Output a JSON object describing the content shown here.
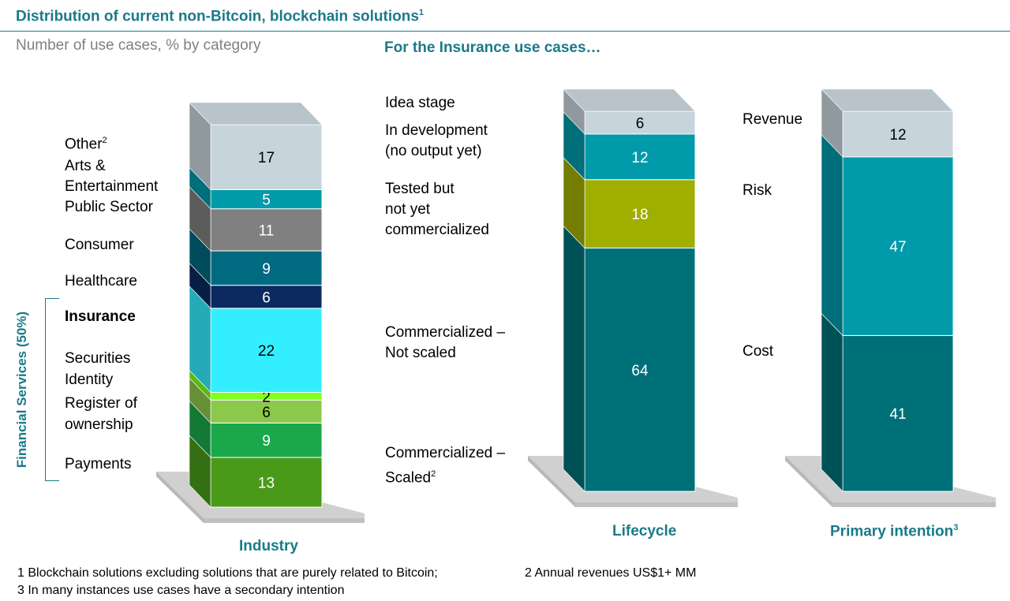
{
  "title": "Distribution of current non-Bitcoin, blockchain solutions",
  "title_sup": "1",
  "subtitle": "Number of use cases, % by category",
  "insurance_heading": "For the Insurance use cases…",
  "bracket_label": "Financial Services (50%)",
  "chart_data": [
    {
      "type": "bar",
      "stacked": true,
      "xlabel": "Industry",
      "categories": [
        "Industry"
      ],
      "series": [
        {
          "name": "Payments",
          "value": 13,
          "color": "#4a9a1a"
        },
        {
          "name": "Register of ownership",
          "value": 9,
          "color": "#1aa84a"
        },
        {
          "name": "Identity",
          "value": 6,
          "color": "#8cc84a"
        },
        {
          "name": "Securities",
          "value": 2,
          "color": "#80ff20"
        },
        {
          "name": "Insurance",
          "value": 22,
          "color": "#33eeff"
        },
        {
          "name": "Healthcare",
          "value": 6,
          "color": "#0a2a60"
        },
        {
          "name": "Consumer",
          "value": 9,
          "color": "#006a80"
        },
        {
          "name": "Public Sector",
          "value": 11,
          "color": "#808080"
        },
        {
          "name": "Arts & Entertainment",
          "value": 5,
          "color": "#009aaa"
        },
        {
          "name": "Other",
          "value": 17,
          "color": "#c8d4dc"
        }
      ]
    },
    {
      "type": "bar",
      "stacked": true,
      "xlabel": "Lifecycle",
      "categories": [
        "Lifecycle"
      ],
      "series": [
        {
          "name": "Commercialized – Scaled",
          "value": 0,
          "color": "#0a2a60"
        },
        {
          "name": "Commercialized – Not scaled",
          "value": 64,
          "color": "#007078"
        },
        {
          "name": "Tested but not yet commercialized",
          "value": 18,
          "color": "#a0ae00"
        },
        {
          "name": "In development (no output yet)",
          "value": 12,
          "color": "#009aaa"
        },
        {
          "name": "Idea stage",
          "value": 6,
          "color": "#c8d4dc"
        }
      ]
    },
    {
      "type": "bar",
      "stacked": true,
      "xlabel": "Primary intention",
      "xlabel_sup": "3",
      "categories": [
        "Primary intention"
      ],
      "series": [
        {
          "name": "Cost",
          "value": 41,
          "color": "#007078"
        },
        {
          "name": "Risk",
          "value": 47,
          "color": "#009aaa"
        },
        {
          "name": "Revenue",
          "value": 12,
          "color": "#c8d4dc"
        }
      ]
    }
  ],
  "industry_labels": {
    "other": "Other",
    "other_sup": "2",
    "arts_1": "Arts &",
    "arts_2": "Entertainment",
    "public": "Public Sector",
    "consumer": "Consumer",
    "healthcare": "Healthcare",
    "insurance": "Insurance",
    "securities": "Securities",
    "identity": "Identity",
    "register_1": "Register of",
    "register_2": "ownership",
    "payments": "Payments"
  },
  "lifecycle_labels": {
    "idea": "Idea stage",
    "dev_1": "In development",
    "dev_2": "(no output yet)",
    "tested_1": "Tested but",
    "tested_2": "not yet",
    "tested_3": "commercialized",
    "notscaled_1": "Commercialized –",
    "notscaled_2": "Not scaled",
    "scaled_1": "Commercialized –",
    "scaled_2": "Scaled",
    "scaled_sup": "2"
  },
  "intention_labels": {
    "revenue": "Revenue",
    "risk": "Risk",
    "cost": "Cost"
  },
  "footnotes": {
    "f1": "1 Blockchain solutions excluding solutions that are purely related to Bitcoin;",
    "f2": "2 Annual revenues US$1+ MM",
    "f3": "3 In many instances use cases have a secondary intention"
  }
}
